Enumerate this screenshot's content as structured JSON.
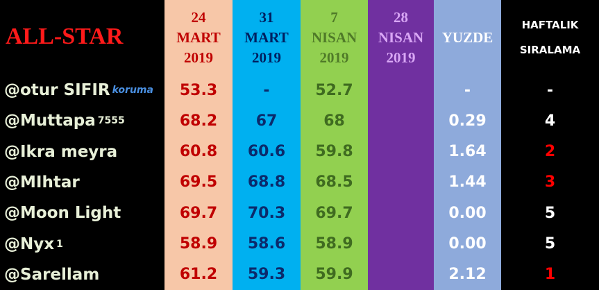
{
  "title": "ALL-STAR",
  "columns": [
    {
      "lines": [
        "24",
        "MART",
        "2019"
      ],
      "bg": "#f7c7a8",
      "header_color": "#c00000",
      "cell_color": "#c00000"
    },
    {
      "lines": [
        "31",
        "MART",
        "2019"
      ],
      "bg": "#00b0f0",
      "header_color": "#002060",
      "cell_color": "#0b2a6b"
    },
    {
      "lines": [
        "7",
        "NISAN",
        "2019"
      ],
      "bg": "#92d050",
      "header_color": "#4f7a28",
      "cell_color": "#3f6b20"
    },
    {
      "lines": [
        "28",
        "NISAN",
        "2019"
      ],
      "bg": "#7030a0",
      "header_color": "#d9a7f5",
      "cell_color": "#ffffff"
    },
    {
      "lines": [
        "YUZDE"
      ],
      "bg": "#8eaadb",
      "header_color": "#ffffff",
      "cell_color": "#ffffff"
    },
    {
      "lines": [
        "HAFTALIK",
        "SIRALAMA"
      ],
      "bg": "#000000",
      "header_color": "#ffffff",
      "cell_color": "#ffffff"
    }
  ],
  "rows": [
    {
      "name": "@otur SIFIR",
      "suffix": "koruma",
      "cells": [
        "53.3",
        "-",
        "52.7",
        "",
        "-",
        "-"
      ],
      "rank_color": "#ffffff"
    },
    {
      "name": "@Muttapa",
      "suffix": "7555",
      "cells": [
        "68.2",
        "67",
        "68",
        "",
        "0.29",
        "4"
      ],
      "rank_color": "#ffffff"
    },
    {
      "name": "@Ikra meyra",
      "cells": [
        "60.8",
        "60.6",
        "59.8",
        "",
        "1.64",
        "2"
      ],
      "rank_color": "#ff0000"
    },
    {
      "name": "@MIhtar",
      "cells": [
        "69.5",
        "68.8",
        "68.5",
        "",
        "1.44",
        "3"
      ],
      "rank_color": "#ff0000"
    },
    {
      "name": "@Moon Light",
      "cells": [
        "69.7",
        "70.3",
        "69.7",
        "",
        "0.00",
        "5"
      ],
      "rank_color": "#ffffff"
    },
    {
      "name": "@Nyx",
      "suffix": "1",
      "cells": [
        "58.9",
        "58.6",
        "58.9",
        "",
        "0.00",
        "5"
      ],
      "rank_color": "#ffffff"
    },
    {
      "name": "@Sarellam",
      "cells": [
        "61.2",
        "59.3",
        "59.9",
        "",
        "2.12",
        "1"
      ],
      "rank_color": "#ff0000"
    }
  ]
}
